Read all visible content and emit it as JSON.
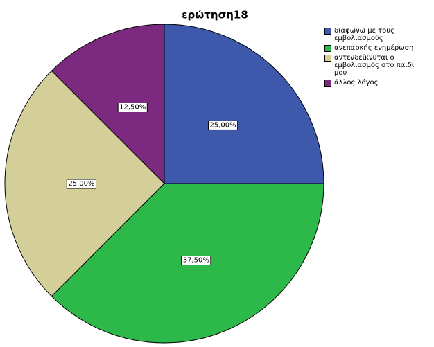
{
  "chart_data": {
    "type": "pie",
    "title": "ερώτηση18",
    "series": [
      {
        "name": "διαφωνώ με τους εμβολιασμούς",
        "color": "#3e58ac"
      },
      {
        "name": "ανεπαρκής ενημέρωση",
        "color": "#2db84a"
      },
      {
        "name": "αντενδείκνυται ο εμβολιασμός στο παιδί μου",
        "color": "#d4cf98"
      },
      {
        "name": "άλλος λόγος",
        "color": "#7b2a80"
      }
    ],
    "values": [
      25,
      37.5,
      25,
      12.5
    ],
    "value_labels": [
      "25,00%",
      "37,50%",
      "25,00%",
      "12,50%"
    ]
  }
}
